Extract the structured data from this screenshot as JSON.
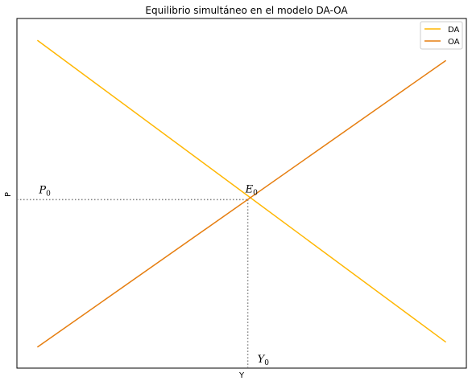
{
  "chart_data": {
    "type": "line",
    "title": "Equilibrio simultáneo en el modelo DA-OA",
    "xlabel": "Y",
    "ylabel": "P",
    "xlim": [
      -1,
      21
    ],
    "ylim": [
      -0.55,
      20.3
    ],
    "grid": false,
    "ticks": "none",
    "legend": {
      "position": "top-right"
    },
    "series": [
      {
        "name": "DA",
        "color": "#FFB703",
        "x": [
          0,
          20
        ],
        "y": [
          19,
          1
        ]
      },
      {
        "name": "OA",
        "color": "#E67E10",
        "x": [
          0,
          20
        ],
        "y": [
          0.7,
          17.8
        ]
      }
    ],
    "equilibrium": {
      "x": 10.3,
      "y": 9.5
    },
    "guide_color": "#808080",
    "annotations": [
      {
        "id": "P0",
        "main": "P",
        "sub": "0",
        "x": 0,
        "y": 9.5
      },
      {
        "id": "E0",
        "main": "E",
        "sub": "0",
        "x": 10.3,
        "y": 9.5
      },
      {
        "id": "Y0",
        "main": "Y",
        "sub": "0",
        "x": 10.3,
        "y": -0.55
      }
    ]
  }
}
